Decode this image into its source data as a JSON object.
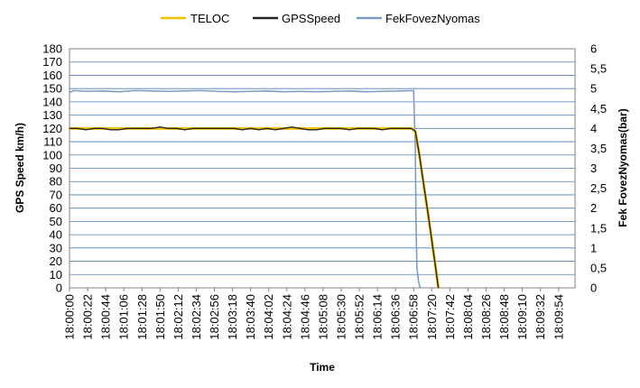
{
  "chart_data": {
    "type": "line",
    "title": "",
    "xlabel": "Time",
    "ylabel": "GPS Speed km/h)",
    "y2label": "Fek FovezNyomas(bar)",
    "ylim": [
      0,
      180
    ],
    "y2lim": [
      0,
      6
    ],
    "y_ticks": [
      "0",
      "10",
      "20",
      "30",
      "40",
      "50",
      "60",
      "70",
      "80",
      "90",
      "100",
      "110",
      "120",
      "130",
      "140",
      "150",
      "160",
      "170",
      "180"
    ],
    "y2_ticks": [
      "0",
      "0,5",
      "1",
      "1,5",
      "2",
      "2,5",
      "3",
      "3,5",
      "4",
      "4,5",
      "5",
      "5,5",
      "6"
    ],
    "x_ticks": [
      "18:00:00",
      "18:00:22",
      "18:00:44",
      "18:01:06",
      "18:01:28",
      "18:01:50",
      "18:02:12",
      "18:02:34",
      "18:02:56",
      "18:03:18",
      "18:03:40",
      "18:04:02",
      "18:04:24",
      "18:04:46",
      "18:05:08",
      "18:05:30",
      "18:05:52",
      "18:06:14",
      "18:06:36",
      "18:06:58",
      "18:07:20",
      "18:07:42",
      "18:08:04",
      "18:08:26",
      "18:08:48",
      "18:09:10",
      "18:09:32",
      "18:09:54"
    ],
    "x_range": [
      "18:00:00",
      "18:10:14"
    ],
    "grid": "horizontal",
    "legend_position": "top",
    "series": [
      {
        "name": "TELOC",
        "color": "#F2C200",
        "axis": "left",
        "x": [
          "18:00:00",
          "18:00:20",
          "18:00:40",
          "18:01:00",
          "18:01:20",
          "18:01:40",
          "18:02:00",
          "18:02:20",
          "18:02:40",
          "18:03:00",
          "18:03:20",
          "18:03:40",
          "18:04:00",
          "18:04:20",
          "18:04:40",
          "18:05:00",
          "18:05:20",
          "18:05:40",
          "18:06:00",
          "18:06:20",
          "18:06:40",
          "18:06:55",
          "18:07:00",
          "18:07:05",
          "18:07:10",
          "18:07:15",
          "18:07:20",
          "18:07:25",
          "18:07:28"
        ],
        "values": [
          120,
          120,
          120,
          120,
          120,
          120,
          120,
          120,
          120,
          120,
          120,
          120,
          120,
          120,
          120,
          120,
          120,
          120,
          120,
          120,
          120,
          120,
          118,
          100,
          78,
          58,
          36,
          14,
          0
        ]
      },
      {
        "name": "GPSSpeed",
        "color": "#262626",
        "axis": "left",
        "x": [
          "18:00:00",
          "18:00:10",
          "18:00:20",
          "18:00:30",
          "18:00:40",
          "18:00:50",
          "18:01:00",
          "18:01:10",
          "18:01:20",
          "18:01:30",
          "18:01:40",
          "18:01:50",
          "18:02:00",
          "18:02:10",
          "18:02:20",
          "18:02:30",
          "18:02:40",
          "18:02:50",
          "18:03:00",
          "18:03:10",
          "18:03:20",
          "18:03:30",
          "18:03:40",
          "18:03:50",
          "18:04:00",
          "18:04:10",
          "18:04:20",
          "18:04:30",
          "18:04:40",
          "18:04:50",
          "18:05:00",
          "18:05:10",
          "18:05:20",
          "18:05:30",
          "18:05:40",
          "18:05:50",
          "18:06:00",
          "18:06:10",
          "18:06:20",
          "18:06:30",
          "18:06:40",
          "18:06:50",
          "18:06:55",
          "18:07:00",
          "18:07:05",
          "18:07:10",
          "18:07:15",
          "18:07:20",
          "18:07:25",
          "18:07:28"
        ],
        "values": [
          120,
          120,
          119,
          120,
          120,
          119,
          119,
          120,
          120,
          120,
          120,
          121,
          120,
          120,
          119,
          120,
          120,
          120,
          120,
          120,
          120,
          119,
          120,
          119,
          120,
          119,
          120,
          121,
          120,
          119,
          119,
          120,
          120,
          120,
          119,
          120,
          120,
          120,
          119,
          120,
          120,
          120,
          120,
          118,
          100,
          79,
          58,
          36,
          14,
          0
        ]
      },
      {
        "name": "FekFovezNyomas",
        "color": "#7F9CC6",
        "axis": "right",
        "x": [
          "18:00:00",
          "18:00:05",
          "18:00:20",
          "18:00:40",
          "18:01:00",
          "18:01:20",
          "18:01:40",
          "18:02:00",
          "18:02:20",
          "18:02:40",
          "18:03:00",
          "18:03:20",
          "18:03:40",
          "18:04:00",
          "18:04:20",
          "18:04:40",
          "18:05:00",
          "18:05:20",
          "18:05:40",
          "18:06:00",
          "18:06:20",
          "18:06:40",
          "18:06:58",
          "18:07:00",
          "18:07:01",
          "18:07:02",
          "18:07:04",
          "18:07:06"
        ],
        "values": [
          4.9,
          4.95,
          4.93,
          4.94,
          4.92,
          4.95,
          4.94,
          4.93,
          4.94,
          4.95,
          4.93,
          4.92,
          4.93,
          4.94,
          4.92,
          4.93,
          4.92,
          4.93,
          4.94,
          4.92,
          4.93,
          4.94,
          4.95,
          3.5,
          1.5,
          0.5,
          0.15,
          0
        ]
      }
    ]
  }
}
